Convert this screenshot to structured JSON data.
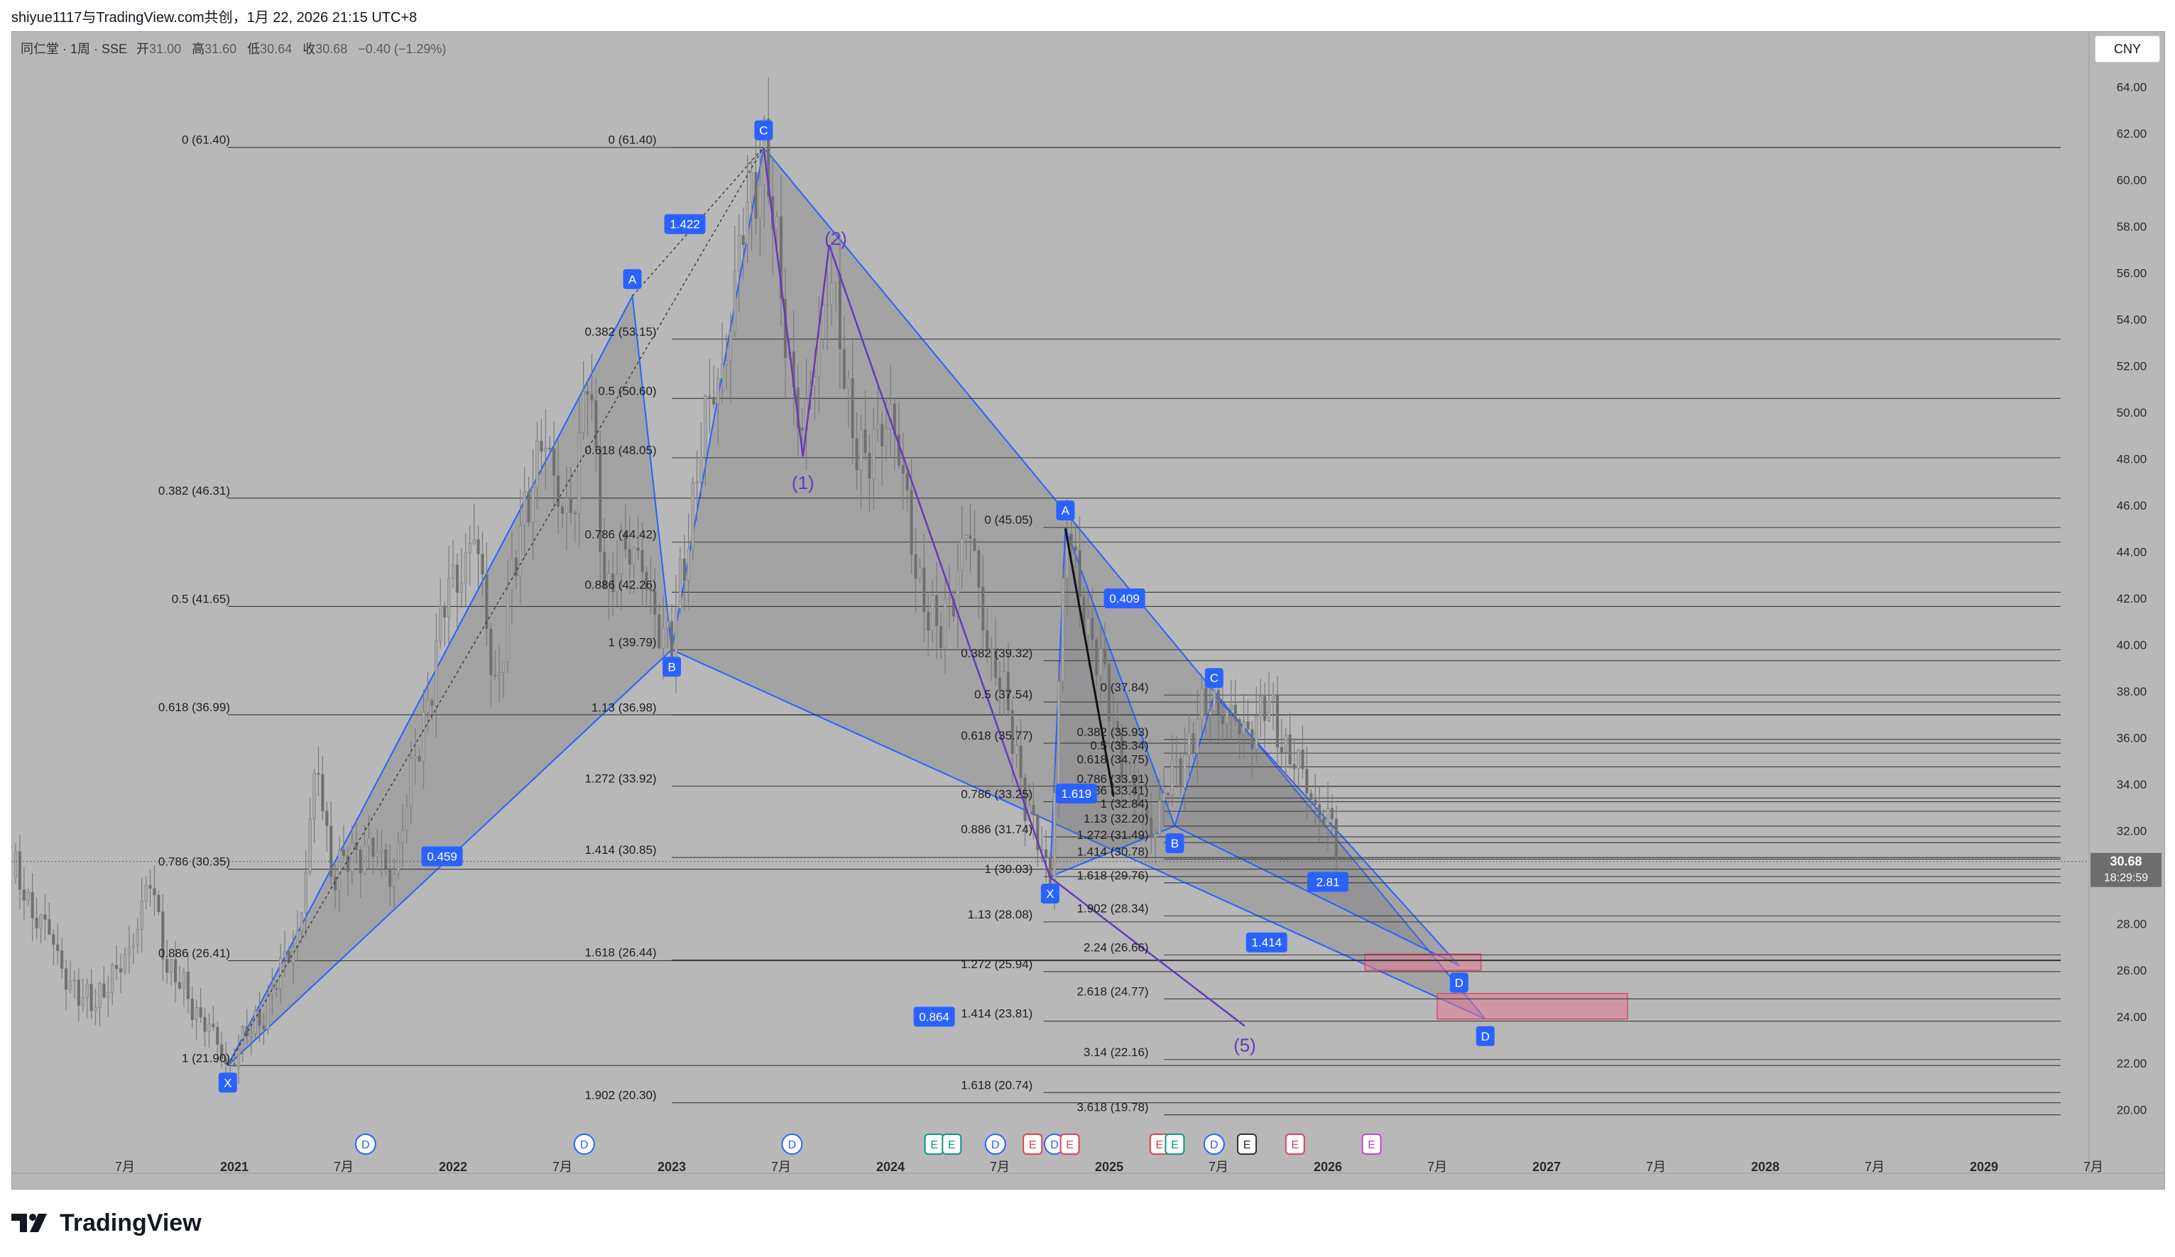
{
  "header": {
    "publish_info": "shiyue1117与TradingView.com共创，1月 22, 2026 21:15 UTC+8"
  },
  "legend": {
    "symbol": "同仁堂 · 1周 · SSE",
    "open_label": "开",
    "open": "31.00",
    "high_label": "高",
    "high": "31.60",
    "low_label": "低",
    "low": "30.64",
    "close_label": "收",
    "close": "30.68",
    "change": "−0.40 (−1.29%)"
  },
  "currency_button": "CNY",
  "price_badge": {
    "price": "30.68",
    "countdown": "18:29:59",
    "value": 30.68
  },
  "logo_text": "TradingView",
  "colors": {
    "background": "#b8b8b8",
    "pattern_blue": "#2962ff",
    "wave_purple": "#673ab7",
    "zone_pink": "#e57a94",
    "candle": "#7a7a7a"
  },
  "chart_data": {
    "type": "line",
    "chart_kind": "candlestick-with-harmonic-patterns",
    "ylim": [
      19,
      66
    ],
    "y_ticks": [
      "20.00",
      "22.00",
      "24.00",
      "26.00",
      "28.00",
      "30.00",
      "32.00",
      "34.00",
      "36.00",
      "38.00",
      "40.00",
      "42.00",
      "44.00",
      "46.00",
      "48.00",
      "50.00",
      "52.00",
      "54.00",
      "56.00",
      "58.00",
      "60.00",
      "62.00",
      "64.00"
    ],
    "x_ticks": [
      "7月",
      "2021",
      "7月",
      "2022",
      "7月",
      "2023",
      "7月",
      "2024",
      "7月",
      "2025",
      "7月",
      "2026",
      "7月",
      "2027",
      "7月",
      "2028",
      "7月",
      "2029",
      "7月"
    ],
    "x_tick_dates": [
      2020.5,
      2021.0,
      2021.5,
      2022.0,
      2022.5,
      2023.0,
      2023.5,
      2024.0,
      2024.5,
      2025.0,
      2025.5,
      2026.0,
      2026.5,
      2027.0,
      2027.5,
      2028.0,
      2028.5,
      2029.0,
      2029.5
    ],
    "price_path": [
      [
        2020.0,
        30.0
      ],
      [
        2020.15,
        27.5
      ],
      [
        2020.3,
        24.5
      ],
      [
        2020.45,
        25.5
      ],
      [
        2020.55,
        27.8
      ],
      [
        2020.62,
        29.8
      ],
      [
        2020.7,
        26.0
      ],
      [
        2020.85,
        24.0
      ],
      [
        2020.97,
        21.9
      ],
      [
        2021.15,
        24.5
      ],
      [
        2021.3,
        28.0
      ],
      [
        2021.38,
        35.0
      ],
      [
        2021.45,
        30.0
      ],
      [
        2021.6,
        31.5
      ],
      [
        2021.72,
        30.0
      ],
      [
        2021.85,
        36.0
      ],
      [
        2021.98,
        42.5
      ],
      [
        2022.1,
        44.5
      ],
      [
        2022.2,
        38.0
      ],
      [
        2022.32,
        46.0
      ],
      [
        2022.42,
        48.5
      ],
      [
        2022.55,
        45.0
      ],
      [
        2022.62,
        53.0
      ],
      [
        2022.7,
        41.0
      ],
      [
        2022.78,
        45.0
      ],
      [
        2022.88,
        42.5
      ],
      [
        2023.0,
        39.8
      ],
      [
        2023.12,
        48.0
      ],
      [
        2023.25,
        53.0
      ],
      [
        2023.35,
        59.0
      ],
      [
        2023.42,
        61.4
      ],
      [
        2023.5,
        55.0
      ],
      [
        2023.6,
        48.5
      ],
      [
        2023.72,
        56.5
      ],
      [
        2023.8,
        50.5
      ],
      [
        2023.9,
        47.5
      ],
      [
        2024.0,
        50.5
      ],
      [
        2024.1,
        44.0
      ],
      [
        2024.22,
        40.0
      ],
      [
        2024.35,
        45.0
      ],
      [
        2024.45,
        40.0
      ],
      [
        2024.55,
        36.5
      ],
      [
        2024.65,
        32.0
      ],
      [
        2024.73,
        30.0
      ],
      [
        2024.8,
        45.0
      ],
      [
        2024.9,
        41.0
      ],
      [
        2025.0,
        37.5
      ],
      [
        2025.1,
        33.5
      ],
      [
        2025.2,
        32.2
      ],
      [
        2025.3,
        34.5
      ],
      [
        2025.4,
        36.5
      ],
      [
        2025.48,
        37.8
      ],
      [
        2025.6,
        36.2
      ],
      [
        2025.72,
        37.3
      ],
      [
        2025.82,
        35.5
      ],
      [
        2025.92,
        33.5
      ],
      [
        2026.0,
        32.5
      ],
      [
        2026.05,
        30.68
      ]
    ],
    "harmonic_patterns": [
      {
        "id": "pattern-1",
        "points": [
          {
            "label": "X",
            "date": 2020.97,
            "price": 21.9
          },
          {
            "label": "A",
            "date": 2022.82,
            "price": 55.0
          },
          {
            "label": "B",
            "date": 2023.0,
            "price": 39.79
          },
          {
            "label": "C",
            "date": 2023.42,
            "price": 61.4
          },
          {
            "label": "D",
            "date": 2026.72,
            "price": 23.9
          }
        ],
        "ratios": [
          {
            "text": "0.459",
            "date": 2021.95,
            "price": 30.9
          },
          {
            "text": "1.422",
            "date": 2023.06,
            "price": 58.1
          },
          {
            "text": "0.864",
            "date": 2024.2,
            "price": 24.0
          }
        ]
      },
      {
        "id": "pattern-2",
        "points": [
          {
            "label": "X",
            "date": 2024.73,
            "price": 30.03
          },
          {
            "label": "A",
            "date": 2024.8,
            "price": 45.05
          },
          {
            "label": "B",
            "date": 2025.3,
            "price": 32.2
          },
          {
            "label": "C",
            "date": 2025.48,
            "price": 37.84
          },
          {
            "label": "D",
            "date": 2026.6,
            "price": 26.2
          }
        ],
        "ratios": [
          {
            "text": "0.409",
            "date": 2025.07,
            "price": 42.0
          },
          {
            "text": "1.619",
            "date": 2024.85,
            "price": 33.6
          },
          {
            "text": "1.414",
            "date": 2025.72,
            "price": 27.2
          },
          {
            "text": "2.81",
            "date": 2026.0,
            "price": 29.8
          }
        ]
      }
    ],
    "wave_labels": [
      {
        "text": "(1)",
        "date": 2023.6,
        "price": 46.7
      },
      {
        "text": "(2)",
        "date": 2023.75,
        "price": 57.2
      },
      {
        "text": "(5)",
        "date": 2025.62,
        "price": 22.5
      }
    ],
    "fib_levels": [
      {
        "text": "0 (61.40)",
        "price": 61.4,
        "label_date": 2021.0,
        "start": 2020.97,
        "end": 2029.5
      },
      {
        "text": "0.382 (46.31)",
        "price": 46.31,
        "label_date": 2021.0,
        "start": 2020.97,
        "end": 2029.5
      },
      {
        "text": "0.5 (41.65)",
        "price": 41.65,
        "label_date": 2021.0,
        "start": 2020.97,
        "end": 2029.5
      },
      {
        "text": "0.618 (36.99)",
        "price": 36.99,
        "label_date": 2021.0,
        "start": 2020.97,
        "end": 2029.5
      },
      {
        "text": "0.786 (30.35)",
        "price": 30.35,
        "label_date": 2021.0,
        "start": 2020.97,
        "end": 2029.5
      },
      {
        "text": "0.886 (26.41)",
        "price": 26.41,
        "label_date": 2021.0,
        "start": 2020.97,
        "end": 2029.5
      },
      {
        "text": "1 (21.90)",
        "price": 21.9,
        "label_date": 2021.0,
        "start": 2020.97,
        "end": 2029.5
      },
      {
        "text": "0 (61.40)",
        "price": 61.4,
        "label_date": 2022.95,
        "start": 2023.0,
        "end": 2029.5
      },
      {
        "text": "0.382 (53.15)",
        "price": 53.15,
        "label_date": 2022.95,
        "start": 2023.0,
        "end": 2029.5
      },
      {
        "text": "0.5 (50.60)",
        "price": 50.6,
        "label_date": 2022.95,
        "start": 2023.0,
        "end": 2029.5
      },
      {
        "text": "0.618 (48.05)",
        "price": 48.05,
        "label_date": 2022.95,
        "start": 2023.0,
        "end": 2029.5
      },
      {
        "text": "0.786 (44.42)",
        "price": 44.42,
        "label_date": 2022.95,
        "start": 2023.0,
        "end": 2029.5
      },
      {
        "text": "0.886 (42.26)",
        "price": 42.26,
        "label_date": 2022.95,
        "start": 2023.0,
        "end": 2029.5
      },
      {
        "text": "1 (39.79)",
        "price": 39.79,
        "label_date": 2022.95,
        "start": 2023.0,
        "end": 2029.5
      },
      {
        "text": "1.13 (36.98)",
        "price": 36.98,
        "label_date": 2022.95,
        "start": 2023.0,
        "end": 2029.5
      },
      {
        "text": "1.272 (33.92)",
        "price": 33.92,
        "label_date": 2022.95,
        "start": 2023.0,
        "end": 2029.5
      },
      {
        "text": "1.414 (30.85)",
        "price": 30.85,
        "label_date": 2022.95,
        "start": 2023.0,
        "end": 2029.5
      },
      {
        "text": "1.618 (26.44)",
        "price": 26.44,
        "label_date": 2022.95,
        "start": 2023.0,
        "end": 2029.5
      },
      {
        "text": "1.902 (20.30)",
        "price": 20.3,
        "label_date": 2022.95,
        "start": 2023.0,
        "end": 2029.5
      },
      {
        "text": "0 (45.05)",
        "price": 45.05,
        "label_date": 2024.67,
        "start": 2024.7,
        "end": 2029.5
      },
      {
        "text": "0.382 (39.32)",
        "price": 39.32,
        "label_date": 2024.67,
        "start": 2024.7,
        "end": 2029.5
      },
      {
        "text": "0.5 (37.54)",
        "price": 37.54,
        "label_date": 2024.67,
        "start": 2024.7,
        "end": 2029.5
      },
      {
        "text": "0.618 (35.77)",
        "price": 35.77,
        "label_date": 2024.67,
        "start": 2024.7,
        "end": 2029.5
      },
      {
        "text": "0.786 (33.25)",
        "price": 33.25,
        "label_date": 2024.67,
        "start": 2024.7,
        "end": 2029.5
      },
      {
        "text": "0.886 (31.74)",
        "price": 31.74,
        "label_date": 2024.67,
        "start": 2024.7,
        "end": 2029.5
      },
      {
        "text": "1 (30.03)",
        "price": 30.03,
        "label_date": 2024.67,
        "start": 2024.7,
        "end": 2029.5
      },
      {
        "text": "1.13 (28.08)",
        "price": 28.08,
        "label_date": 2024.67,
        "start": 2024.7,
        "end": 2029.5
      },
      {
        "text": "1.272 (25.94)",
        "price": 25.94,
        "label_date": 2024.67,
        "start": 2024.7,
        "end": 2029.5
      },
      {
        "text": "1.414 (23.81)",
        "price": 23.81,
        "label_date": 2024.67,
        "start": 2024.7,
        "end": 2029.5
      },
      {
        "text": "1.618 (20.74)",
        "price": 20.74,
        "label_date": 2024.67,
        "start": 2024.7,
        "end": 2029.5
      },
      {
        "text": "0 (37.84)",
        "price": 37.84,
        "label_date": 2025.2,
        "start": 2025.25,
        "end": 2029.5
      },
      {
        "text": "0.382 (35.93)",
        "price": 35.93,
        "label_date": 2025.2,
        "start": 2025.25,
        "end": 2029.5
      },
      {
        "text": "0.5 (35.34)",
        "price": 35.34,
        "label_date": 2025.2,
        "start": 2025.25,
        "end": 2029.5
      },
      {
        "text": "0.618 (34.75)",
        "price": 34.75,
        "label_date": 2025.2,
        "start": 2025.25,
        "end": 2029.5
      },
      {
        "text": "0.786 (33.91)",
        "price": 33.91,
        "label_date": 2025.2,
        "start": 2025.25,
        "end": 2029.5
      },
      {
        "text": "0.886 (33.41)",
        "price": 33.41,
        "label_date": 2025.2,
        "start": 2025.25,
        "end": 2029.5
      },
      {
        "text": "1 (32.84)",
        "price": 32.84,
        "label_date": 2025.2,
        "start": 2025.25,
        "end": 2029.5
      },
      {
        "text": "1.13 (32.20)",
        "price": 32.2,
        "label_date": 2025.2,
        "start": 2025.25,
        "end": 2029.5
      },
      {
        "text": "1.272 (31.49)",
        "price": 31.49,
        "label_date": 2025.2,
        "start": 2025.25,
        "end": 2029.5
      },
      {
        "text": "1.414 (30.78)",
        "price": 30.78,
        "label_date": 2025.2,
        "start": 2025.25,
        "end": 2029.5
      },
      {
        "text": "1.618 (29.76)",
        "price": 29.76,
        "label_date": 2025.2,
        "start": 2025.25,
        "end": 2029.5
      },
      {
        "text": "1.902 (28.34)",
        "price": 28.34,
        "label_date": 2025.2,
        "start": 2025.25,
        "end": 2029.5
      },
      {
        "text": "2.24 (26.66)",
        "price": 26.66,
        "label_date": 2025.2,
        "start": 2025.25,
        "end": 2029.5
      },
      {
        "text": "2.618 (24.77)",
        "price": 24.77,
        "label_date": 2025.2,
        "start": 2025.25,
        "end": 2029.5
      },
      {
        "text": "3.14 (22.16)",
        "price": 22.16,
        "label_date": 2025.2,
        "start": 2025.25,
        "end": 2029.5
      },
      {
        "text": "3.618 (19.78)",
        "price": 19.78,
        "label_date": 2025.2,
        "start": 2025.25,
        "end": 2029.5
      }
    ],
    "target_zones": [
      {
        "date_start": 2026.17,
        "date_end": 2026.7,
        "price_low": 26.0,
        "price_high": 26.7
      },
      {
        "date_start": 2026.5,
        "date_end": 2027.37,
        "price_low": 23.9,
        "price_high": 25.0
      }
    ],
    "events": [
      {
        "text": "D",
        "date": 2021.6,
        "type": "dividend"
      },
      {
        "text": "D",
        "date": 2022.6,
        "type": "dividend"
      },
      {
        "text": "D",
        "date": 2023.55,
        "type": "dividend"
      },
      {
        "text": "E",
        "date": 2024.2,
        "type": "earnings"
      },
      {
        "text": "E",
        "date": 2024.28,
        "type": "earnings"
      },
      {
        "text": "D",
        "date": 2024.48,
        "type": "dividend"
      },
      {
        "text": "E",
        "date": 2024.65,
        "type": "earnings-red"
      },
      {
        "text": "D",
        "date": 2024.75,
        "type": "dividend"
      },
      {
        "text": "E",
        "date": 2024.82,
        "type": "earnings-red"
      },
      {
        "text": "E",
        "date": 2025.23,
        "type": "earnings-red"
      },
      {
        "text": "E",
        "date": 2025.3,
        "type": "earnings"
      },
      {
        "text": "D",
        "date": 2025.48,
        "type": "dividend"
      },
      {
        "text": "E",
        "date": 2025.63,
        "type": "earnings-gray"
      },
      {
        "text": "E",
        "date": 2025.85,
        "type": "earnings-red"
      },
      {
        "text": "E",
        "date": 2026.2,
        "type": "earnings-purple"
      }
    ]
  }
}
